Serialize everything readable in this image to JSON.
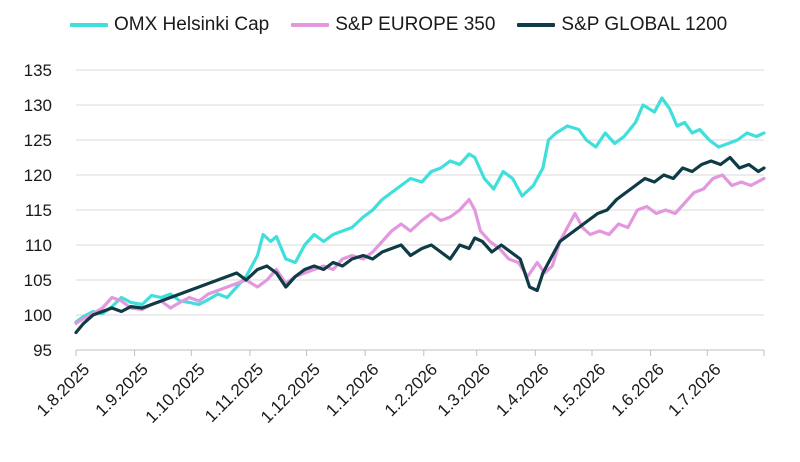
{
  "chart_data": {
    "type": "line",
    "title": "",
    "xlabel": "",
    "ylabel": "",
    "ylim": [
      95,
      135
    ],
    "yticks": [
      95,
      100,
      105,
      110,
      115,
      120,
      125,
      130,
      135
    ],
    "xlim": [
      "2025-08-01",
      "2026-07-31"
    ],
    "xticks": [
      {
        "date": "2025-08-01",
        "label": "1.8.2025"
      },
      {
        "date": "2025-09-01",
        "label": "1.9.2025"
      },
      {
        "date": "2025-10-01",
        "label": "1.10.2025"
      },
      {
        "date": "2025-11-01",
        "label": "1.11.2025"
      },
      {
        "date": "2025-12-01",
        "label": "1.12.2025"
      },
      {
        "date": "2026-01-01",
        "label": "1.1.2026"
      },
      {
        "date": "2026-02-01",
        "label": "1.2.2026"
      },
      {
        "date": "2026-03-01",
        "label": "1.3.2026"
      },
      {
        "date": "2026-04-01",
        "label": "1.4.2026"
      },
      {
        "date": "2026-05-01",
        "label": "1.5.2026"
      },
      {
        "date": "2026-06-01",
        "label": "1.6.2026"
      },
      {
        "date": "2026-07-01",
        "label": "1.7.2026"
      }
    ],
    "grid": "horizontal",
    "legend_position": "top",
    "series": [
      {
        "name": "OMX Helsinki Cap",
        "color": "#3fdfdc",
        "points": [
          [
            "2025-08-01",
            99
          ],
          [
            "2025-08-05",
            99.8
          ],
          [
            "2025-08-10",
            100.5
          ],
          [
            "2025-08-15",
            100.2
          ],
          [
            "2025-08-20",
            101.2
          ],
          [
            "2025-08-25",
            102.5
          ],
          [
            "2025-08-30",
            101.8
          ],
          [
            "2025-09-05",
            101.5
          ],
          [
            "2025-09-10",
            102.8
          ],
          [
            "2025-09-15",
            102.5
          ],
          [
            "2025-09-20",
            103
          ],
          [
            "2025-09-25",
            102
          ],
          [
            "2025-09-30",
            101.8
          ],
          [
            "2025-10-05",
            101.5
          ],
          [
            "2025-10-10",
            102.2
          ],
          [
            "2025-10-15",
            103
          ],
          [
            "2025-10-20",
            102.5
          ],
          [
            "2025-10-25",
            104
          ],
          [
            "2025-10-30",
            105.5
          ],
          [
            "2025-11-01",
            106.5
          ],
          [
            "2025-11-05",
            108.5
          ],
          [
            "2025-11-08",
            111.5
          ],
          [
            "2025-11-12",
            110.5
          ],
          [
            "2025-11-15",
            111.2
          ],
          [
            "2025-11-20",
            108
          ],
          [
            "2025-11-25",
            107.5
          ],
          [
            "2025-11-30",
            110
          ],
          [
            "2025-12-05",
            111.5
          ],
          [
            "2025-12-10",
            110.5
          ],
          [
            "2025-12-15",
            111.5
          ],
          [
            "2025-12-20",
            112
          ],
          [
            "2025-12-25",
            112.5
          ],
          [
            "2025-12-31",
            114
          ],
          [
            "2026-01-05",
            115
          ],
          [
            "2026-01-10",
            116.5
          ],
          [
            "2026-01-15",
            117.5
          ],
          [
            "2026-01-20",
            118.5
          ],
          [
            "2026-01-25",
            119.5
          ],
          [
            "2026-01-31",
            119
          ],
          [
            "2026-02-05",
            120.5
          ],
          [
            "2026-02-10",
            121
          ],
          [
            "2026-02-15",
            122
          ],
          [
            "2026-02-20",
            121.5
          ],
          [
            "2026-02-25",
            123
          ],
          [
            "2026-02-28",
            122.5
          ],
          [
            "2026-03-05",
            119.5
          ],
          [
            "2026-03-10",
            118
          ],
          [
            "2026-03-15",
            120.5
          ],
          [
            "2026-03-20",
            119.5
          ],
          [
            "2026-03-25",
            117
          ],
          [
            "2026-03-31",
            118.5
          ],
          [
            "2026-04-05",
            121
          ],
          [
            "2026-04-08",
            125
          ],
          [
            "2026-04-12",
            126
          ],
          [
            "2026-04-18",
            127
          ],
          [
            "2026-04-24",
            126.5
          ],
          [
            "2026-04-28",
            125
          ],
          [
            "2026-05-03",
            124
          ],
          [
            "2026-05-08",
            126
          ],
          [
            "2026-05-13",
            124.5
          ],
          [
            "2026-05-18",
            125.5
          ],
          [
            "2026-05-24",
            127.5
          ],
          [
            "2026-05-28",
            130
          ],
          [
            "2026-06-03",
            129
          ],
          [
            "2026-06-07",
            131
          ],
          [
            "2026-06-11",
            129.5
          ],
          [
            "2026-06-15",
            127
          ],
          [
            "2026-06-19",
            127.5
          ],
          [
            "2026-06-23",
            126
          ],
          [
            "2026-06-27",
            126.5
          ],
          [
            "2026-07-02",
            125
          ],
          [
            "2026-07-07",
            124
          ],
          [
            "2026-07-12",
            124.5
          ],
          [
            "2026-07-17",
            125
          ],
          [
            "2026-07-22",
            126
          ],
          [
            "2026-07-27",
            125.5
          ],
          [
            "2026-07-31",
            126
          ]
        ]
      },
      {
        "name": "S&P EUROPE 350",
        "color": "#e397de",
        "points": [
          [
            "2025-08-01",
            98.8
          ],
          [
            "2025-08-05",
            99.5
          ],
          [
            "2025-08-10",
            100.2
          ],
          [
            "2025-08-15",
            101
          ],
          [
            "2025-08-20",
            102.5
          ],
          [
            "2025-08-25",
            102
          ],
          [
            "2025-08-30",
            101
          ],
          [
            "2025-09-05",
            100.8
          ],
          [
            "2025-09-10",
            101.5
          ],
          [
            "2025-09-15",
            102
          ],
          [
            "2025-09-20",
            101
          ],
          [
            "2025-09-25",
            101.8
          ],
          [
            "2025-09-30",
            102.5
          ],
          [
            "2025-10-05",
            102
          ],
          [
            "2025-10-10",
            103
          ],
          [
            "2025-10-15",
            103.5
          ],
          [
            "2025-10-20",
            104
          ],
          [
            "2025-10-25",
            104.5
          ],
          [
            "2025-10-30",
            105
          ],
          [
            "2025-11-05",
            104
          ],
          [
            "2025-11-10",
            105
          ],
          [
            "2025-11-15",
            106.5
          ],
          [
            "2025-11-20",
            104.5
          ],
          [
            "2025-11-25",
            105.5
          ],
          [
            "2025-11-30",
            106
          ],
          [
            "2025-12-05",
            106.5
          ],
          [
            "2025-12-10",
            107
          ],
          [
            "2025-12-15",
            106.5
          ],
          [
            "2025-12-20",
            108
          ],
          [
            "2025-12-25",
            108.5
          ],
          [
            "2025-12-31",
            108
          ],
          [
            "2026-01-05",
            109
          ],
          [
            "2026-01-10",
            110.5
          ],
          [
            "2026-01-15",
            112
          ],
          [
            "2026-01-20",
            113
          ],
          [
            "2026-01-25",
            112
          ],
          [
            "2026-01-31",
            113.5
          ],
          [
            "2026-02-05",
            114.5
          ],
          [
            "2026-02-10",
            113.5
          ],
          [
            "2026-02-15",
            114
          ],
          [
            "2026-02-20",
            115
          ],
          [
            "2026-02-25",
            116.5
          ],
          [
            "2026-02-28",
            115
          ],
          [
            "2026-03-03",
            112
          ],
          [
            "2026-03-08",
            110.5
          ],
          [
            "2026-03-13",
            109.5
          ],
          [
            "2026-03-18",
            108
          ],
          [
            "2026-03-23",
            107.5
          ],
          [
            "2026-03-28",
            105.5
          ],
          [
            "2026-04-02",
            107.5
          ],
          [
            "2026-04-06",
            106
          ],
          [
            "2026-04-10",
            107
          ],
          [
            "2026-04-14",
            110.5
          ],
          [
            "2026-04-18",
            112.5
          ],
          [
            "2026-04-22",
            114.5
          ],
          [
            "2026-04-26",
            112.5
          ],
          [
            "2026-04-30",
            111.5
          ],
          [
            "2026-05-05",
            112
          ],
          [
            "2026-05-10",
            111.5
          ],
          [
            "2026-05-15",
            113
          ],
          [
            "2026-05-20",
            112.5
          ],
          [
            "2026-05-25",
            115
          ],
          [
            "2026-05-30",
            115.5
          ],
          [
            "2026-06-04",
            114.5
          ],
          [
            "2026-06-09",
            115
          ],
          [
            "2026-06-14",
            114.5
          ],
          [
            "2026-06-19",
            116
          ],
          [
            "2026-06-24",
            117.5
          ],
          [
            "2026-06-29",
            118
          ],
          [
            "2026-07-04",
            119.5
          ],
          [
            "2026-07-09",
            120
          ],
          [
            "2026-07-14",
            118.5
          ],
          [
            "2026-07-19",
            119
          ],
          [
            "2026-07-24",
            118.5
          ],
          [
            "2026-07-31",
            119.5
          ]
        ]
      },
      {
        "name": "S&P GLOBAL 1200",
        "color": "#0e3b45",
        "points": [
          [
            "2025-08-01",
            97.5
          ],
          [
            "2025-08-05",
            98.8
          ],
          [
            "2025-08-10",
            100
          ],
          [
            "2025-08-15",
            100.5
          ],
          [
            "2025-08-20",
            101
          ],
          [
            "2025-08-25",
            100.5
          ],
          [
            "2025-08-30",
            101.2
          ],
          [
            "2025-09-05",
            101
          ],
          [
            "2025-09-10",
            101.5
          ],
          [
            "2025-09-15",
            102
          ],
          [
            "2025-09-20",
            102.5
          ],
          [
            "2025-09-25",
            103
          ],
          [
            "2025-09-30",
            103.5
          ],
          [
            "2025-10-05",
            104
          ],
          [
            "2025-10-10",
            104.5
          ],
          [
            "2025-10-15",
            105
          ],
          [
            "2025-10-20",
            105.5
          ],
          [
            "2025-10-25",
            106
          ],
          [
            "2025-10-30",
            105
          ],
          [
            "2025-11-05",
            106.5
          ],
          [
            "2025-11-10",
            107
          ],
          [
            "2025-11-15",
            106
          ],
          [
            "2025-11-20",
            104
          ],
          [
            "2025-11-25",
            105.5
          ],
          [
            "2025-11-30",
            106.5
          ],
          [
            "2025-12-05",
            107
          ],
          [
            "2025-12-10",
            106.5
          ],
          [
            "2025-12-15",
            107.5
          ],
          [
            "2025-12-20",
            107
          ],
          [
            "2025-12-25",
            108
          ],
          [
            "2025-12-31",
            108.5
          ],
          [
            "2026-01-05",
            108
          ],
          [
            "2026-01-10",
            109
          ],
          [
            "2026-01-15",
            109.5
          ],
          [
            "2026-01-20",
            110
          ],
          [
            "2026-01-25",
            108.5
          ],
          [
            "2026-01-31",
            109.5
          ],
          [
            "2026-02-05",
            110
          ],
          [
            "2026-02-10",
            109
          ],
          [
            "2026-02-15",
            108
          ],
          [
            "2026-02-20",
            110
          ],
          [
            "2026-02-25",
            109.5
          ],
          [
            "2026-02-28",
            111
          ],
          [
            "2026-03-04",
            110.5
          ],
          [
            "2026-03-09",
            109
          ],
          [
            "2026-03-14",
            110
          ],
          [
            "2026-03-19",
            109
          ],
          [
            "2026-03-24",
            108
          ],
          [
            "2026-03-29",
            104
          ],
          [
            "2026-04-02",
            103.5
          ],
          [
            "2026-04-05",
            106
          ],
          [
            "2026-04-09",
            108
          ],
          [
            "2026-04-14",
            110.5
          ],
          [
            "2026-04-19",
            111.5
          ],
          [
            "2026-04-24",
            112.5
          ],
          [
            "2026-04-29",
            113.5
          ],
          [
            "2026-05-04",
            114.5
          ],
          [
            "2026-05-09",
            115
          ],
          [
            "2026-05-14",
            116.5
          ],
          [
            "2026-05-19",
            117.5
          ],
          [
            "2026-05-24",
            118.5
          ],
          [
            "2026-05-29",
            119.5
          ],
          [
            "2026-06-03",
            119
          ],
          [
            "2026-06-08",
            120
          ],
          [
            "2026-06-13",
            119.5
          ],
          [
            "2026-06-18",
            121
          ],
          [
            "2026-06-23",
            120.5
          ],
          [
            "2026-06-28",
            121.5
          ],
          [
            "2026-07-03",
            122
          ],
          [
            "2026-07-08",
            121.5
          ],
          [
            "2026-07-13",
            122.5
          ],
          [
            "2026-07-18",
            121
          ],
          [
            "2026-07-23",
            121.5
          ],
          [
            "2026-07-28",
            120.5
          ],
          [
            "2026-07-31",
            121
          ]
        ]
      }
    ]
  }
}
